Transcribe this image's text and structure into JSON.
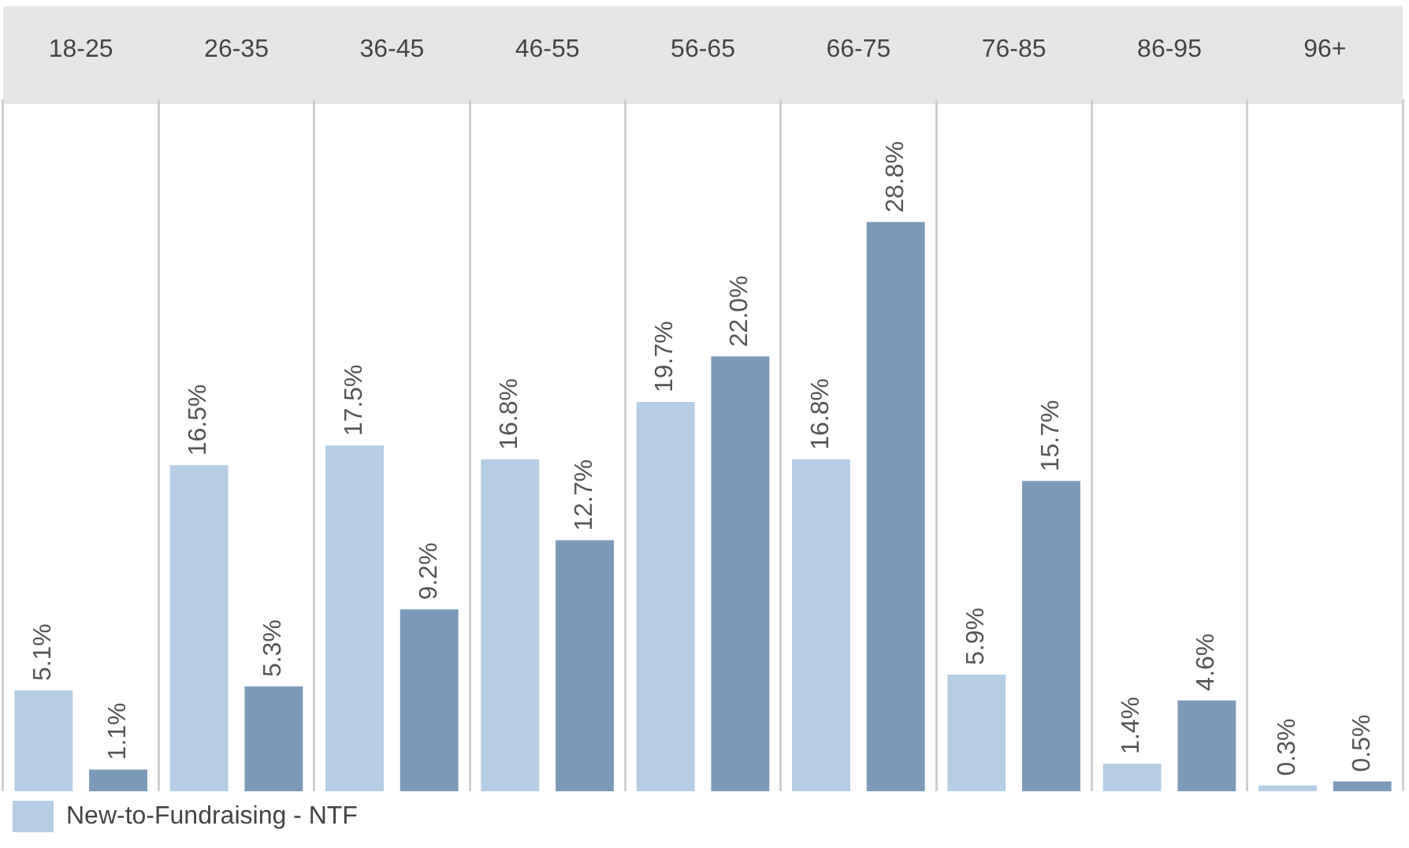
{
  "chart_data": {
    "type": "bar",
    "categories": [
      "18-25",
      "26-35",
      "36-45",
      "46-55",
      "56-65",
      "66-75",
      "76-85",
      "86-95",
      "96+"
    ],
    "series": [
      {
        "name": "New-to-Fundraising - NTF",
        "color": "#b4cde4",
        "values": [
          5.1,
          16.5,
          17.5,
          16.8,
          19.7,
          16.8,
          5.9,
          1.4,
          0.3
        ],
        "value_labels": [
          "5.1%",
          "16.5%",
          "17.5%",
          "16.8%",
          "19.7%",
          "16.8%",
          "5.9%",
          "1.4%",
          "0.3%"
        ]
      },
      {
        "color": "#7b9aba",
        "values": [
          1.1,
          5.3,
          9.2,
          12.7,
          22.0,
          28.8,
          15.7,
          4.6,
          0.5
        ],
        "value_labels": [
          "1.1%",
          "5.3%",
          "9.2%",
          "12.7%",
          "22.0%",
          "28.8%",
          "15.7%",
          "4.6%",
          "0.5%"
        ]
      }
    ],
    "grid": "x",
    "legend": "bottom left"
  }
}
